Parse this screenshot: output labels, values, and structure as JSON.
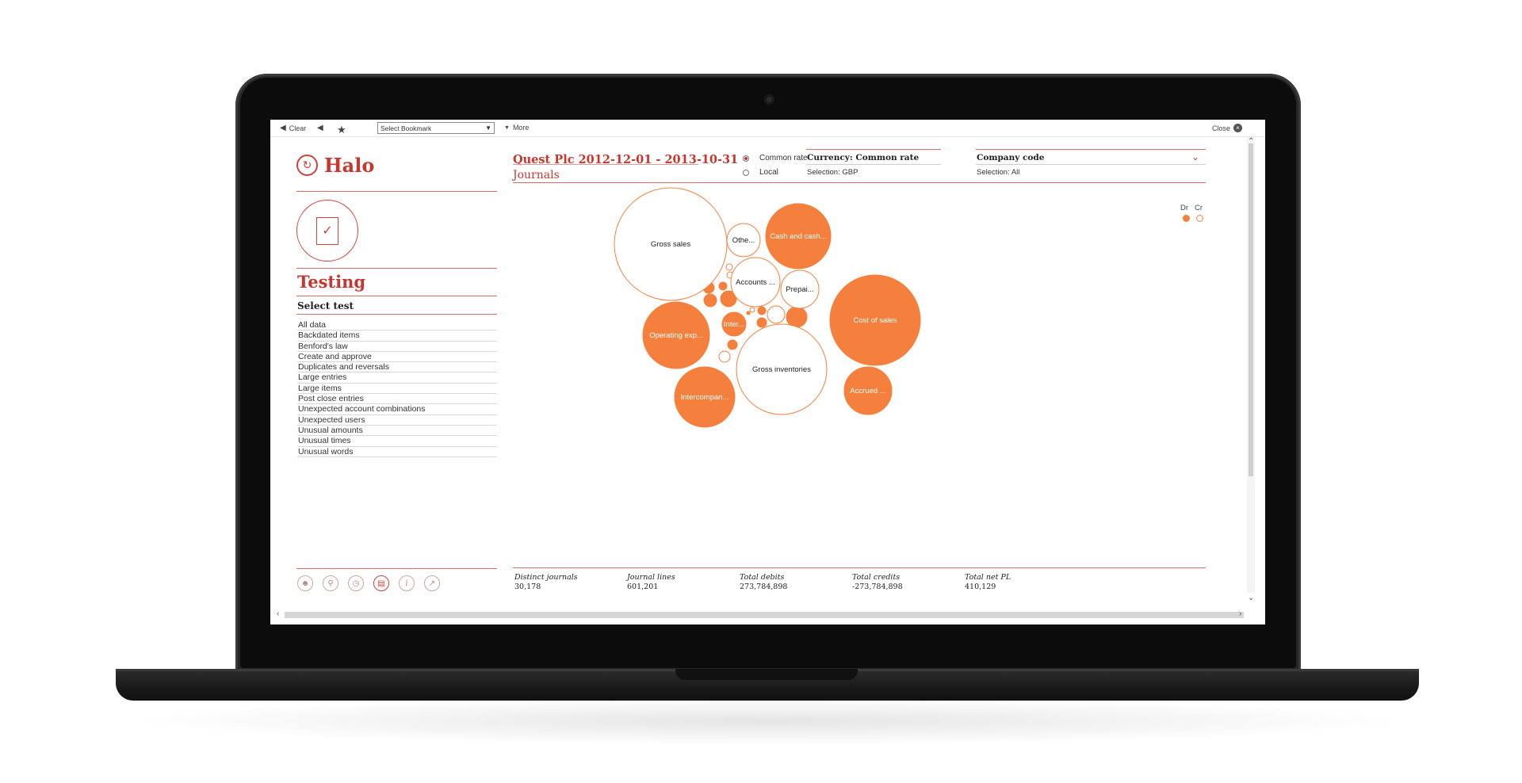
{
  "toolbar": {
    "clear_label": "Clear",
    "bookmark_select": "Select Bookmark",
    "more_label": "More",
    "close_label": "Close"
  },
  "app": {
    "logo_text": "Halo",
    "section_title": "Testing",
    "select_test_label": "Select test",
    "tests": [
      "All data",
      "Backdated items",
      "Benford's law",
      "Create and approve",
      "Duplicates and reversals",
      "Large entries",
      "Large items",
      "Post close entries",
      "Unexpected account combinations",
      "Unexpected users",
      "Unusual amounts",
      "Unusual times",
      "Unusual words"
    ],
    "bottom_icons": [
      "user-icon",
      "search-icon",
      "dashboard-icon",
      "report-icon",
      "info-icon",
      "export-icon"
    ]
  },
  "header": {
    "title": "Quest Plc 2012-12-01 - 2013-10-31",
    "subtitle": "Journals",
    "rate_options": [
      {
        "label": "Common rate",
        "selected": true
      },
      {
        "label": "Local",
        "selected": false
      }
    ],
    "currency_label": "Currency: Common rate",
    "currency_selection": "Selection: GBP",
    "company_label": "Company code",
    "company_selection": "Selection: All"
  },
  "legend": {
    "dr_label": "Dr",
    "cr_label": "Cr",
    "dr_color": "#f5803d",
    "cr_color": "#ffffff"
  },
  "stats": [
    {
      "label": "Distinct journals",
      "value": "30,178"
    },
    {
      "label": "Journal lines",
      "value": "601,201"
    },
    {
      "label": "Total debits",
      "value": "273,784,898"
    },
    {
      "label": "Total credits",
      "value": "-273,784,898"
    },
    {
      "label": "Total net PL",
      "value": "410,129"
    }
  ],
  "chart_data": {
    "type": "bubble",
    "title": "",
    "series": [
      {
        "name": "Dr",
        "color": "#f5803d"
      },
      {
        "name": "Cr",
        "color": "#ffffff"
      }
    ],
    "bubbles": [
      {
        "label": "Gross sales",
        "side": "Cr",
        "size": 100
      },
      {
        "label": "Othe...",
        "side": "Cr",
        "size": 9
      },
      {
        "label": "Cash and cash...",
        "side": "Dr",
        "size": 38
      },
      {
        "label": "Accounts ...",
        "side": "Cr",
        "size": 23
      },
      {
        "label": "Prepai...",
        "side": "Cr",
        "size": 13
      },
      {
        "label": "Cost of sales",
        "side": "Dr",
        "size": 75
      },
      {
        "label": "Operating exp...",
        "side": "Dr",
        "size": 42
      },
      {
        "label": "Inter...",
        "side": "Dr",
        "size": 8
      },
      {
        "label": "Gross inventories",
        "side": "Cr",
        "size": 76
      },
      {
        "label": "Accrued ...",
        "side": "Dr",
        "size": 21
      },
      {
        "label": "Intercompan...",
        "side": "Dr",
        "size": 35
      }
    ]
  }
}
